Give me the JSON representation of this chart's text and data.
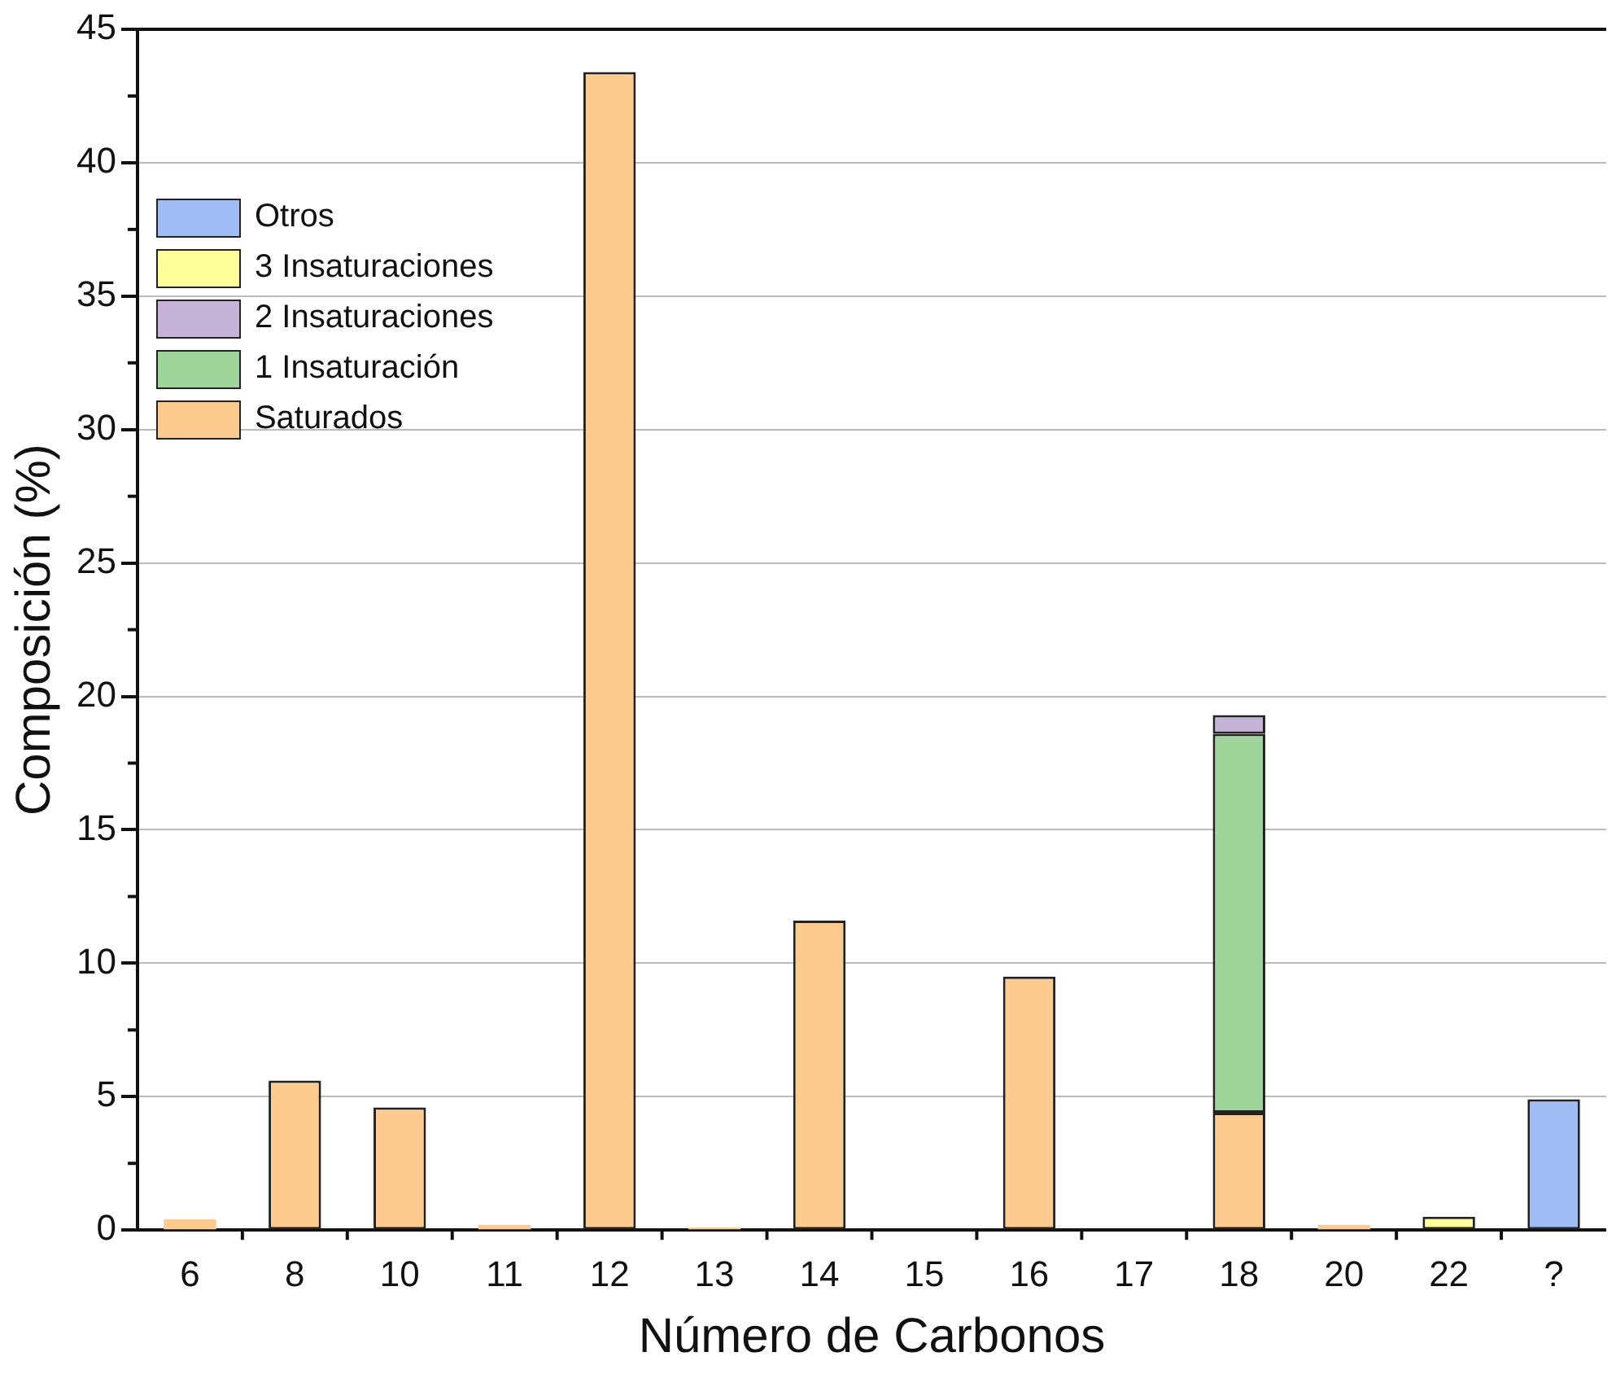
{
  "chart_data": {
    "type": "bar",
    "xlabel": "Número de Carbonos",
    "ylabel": "Composición (%)",
    "categories": [
      "6",
      "8",
      "10",
      "11",
      "12",
      "13",
      "14",
      "15",
      "16",
      "17",
      "18",
      "20",
      "22",
      "?"
    ],
    "stacked": true,
    "ylim": [
      0,
      45
    ],
    "yticks": [
      0,
      5,
      10,
      15,
      20,
      25,
      30,
      35,
      40,
      45
    ],
    "grid": "y",
    "legend": "top left",
    "series": [
      {
        "name": "Saturados",
        "color": "#fecb8f",
        "values": [
          0.4,
          5.6,
          4.6,
          0.2,
          43.4,
          0.1,
          11.6,
          null,
          9.5,
          null,
          4.4,
          0.2,
          null,
          null
        ]
      },
      {
        "name": "1 Insaturación",
        "color": "#9ed59a",
        "values": [
          null,
          null,
          null,
          null,
          null,
          null,
          null,
          null,
          null,
          null,
          14.2,
          null,
          null,
          null
        ]
      },
      {
        "name": "2 Insaturaciones",
        "color": "#c5b3d7",
        "values": [
          null,
          null,
          null,
          null,
          null,
          null,
          null,
          null,
          null,
          null,
          0.7,
          null,
          null,
          null
        ]
      },
      {
        "name": "3 Insaturaciones",
        "color": "#ffff9c",
        "values": [
          null,
          null,
          null,
          null,
          null,
          null,
          null,
          null,
          null,
          null,
          null,
          null,
          0.5,
          null
        ]
      },
      {
        "name": "Otros",
        "color": "#9fbcf5",
        "values": [
          null,
          null,
          null,
          null,
          null,
          null,
          null,
          null,
          null,
          null,
          null,
          null,
          null,
          4.9
        ]
      }
    ]
  }
}
